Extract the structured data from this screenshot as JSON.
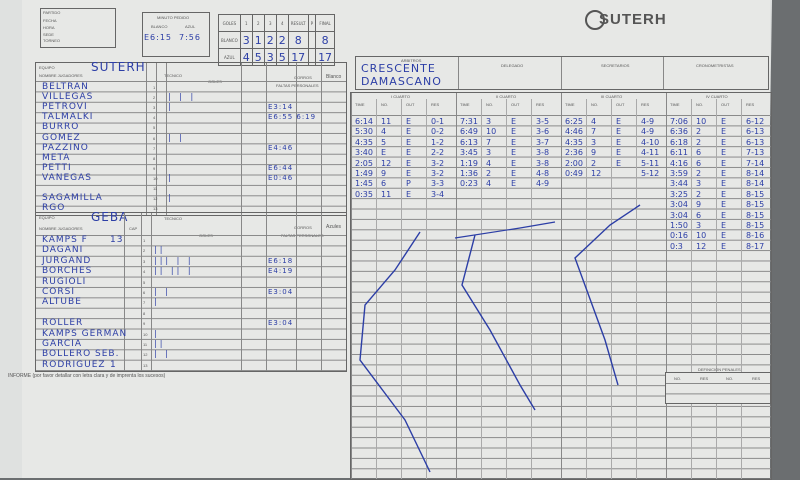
{
  "header": {
    "partido_label": "PARTIDO",
    "partido_fields": [
      "FECHA",
      "HORA",
      "SEDE",
      "TORNEO",
      "CATEGORIA"
    ],
    "minuto_pedido_label": "MINUTO PEDIDO",
    "minuto_pedido_cols": [
      "BLANCO",
      "AZUL"
    ],
    "minuto_pedido_values": [
      "E6:15",
      "7:56"
    ],
    "logo_text": "SUTERH"
  },
  "score": {
    "label": "GOLES",
    "cols": [
      "1",
      "2",
      "3",
      "4",
      "RESULT",
      "P",
      "FINAL"
    ],
    "rows": [
      {
        "team": "BLANCO",
        "q": [
          "3",
          "1",
          "2",
          "2"
        ],
        "result": "8",
        "final": "8"
      },
      {
        "team": "AZUL",
        "q": [
          "4",
          "5",
          "3",
          "5"
        ],
        "result": "17",
        "final": "17"
      }
    ]
  },
  "team_white": {
    "equipo_label": "EQUIPO",
    "name": "SUTERH",
    "tecnico_label": "TECNICO",
    "gorros_label": "GORROS",
    "gorros_color": "Blanco",
    "players_label": "NOMBRE JUGADORES",
    "cap_label": "CAP",
    "goles_label": "GOLES",
    "faltas_label": "FALTAS PERSONALES",
    "players": [
      {
        "n": "1",
        "name": "BELTRAN",
        "goals": "",
        "fouls": ""
      },
      {
        "n": "2",
        "name": "VILLEGAS",
        "goals": "| | |",
        "fouls": ""
      },
      {
        "n": "3",
        "name": "PETROVI",
        "goals": "|",
        "fouls": "E3:14"
      },
      {
        "n": "4",
        "name": "TALMALKI",
        "goals": "",
        "fouls": "E6:55  6:19"
      },
      {
        "n": "5",
        "name": "BURRO",
        "goals": "",
        "fouls": ""
      },
      {
        "n": "6",
        "name": "GOMEZ",
        "goals": "|   |",
        "fouls": ""
      },
      {
        "n": "7",
        "name": "PAZZINO",
        "goals": "",
        "fouls": "E4:46"
      },
      {
        "n": "8",
        "name": "META",
        "goals": "",
        "fouls": ""
      },
      {
        "n": "9",
        "name": "PETTI",
        "goals": "",
        "fouls": "E6:44"
      },
      {
        "n": "10",
        "name": "VANEGAS",
        "goals": "|",
        "fouls": "E0:46"
      },
      {
        "n": "11",
        "name": "",
        "goals": "",
        "fouls": ""
      },
      {
        "n": "12",
        "name": "SAGAMILLA",
        "goals": "|",
        "fouls": ""
      },
      {
        "n": "13",
        "name": "RGO",
        "goals": "",
        "fouls": ""
      }
    ]
  },
  "team_blue": {
    "equipo_label": "EQUIPO",
    "name": "GEBA",
    "tecnico_label": "TECNICO",
    "gorros_label": "GORROS",
    "gorros_color": "Azules",
    "players_label": "NOMBRE JUGADORES",
    "cap_label": "CAP",
    "goles_label": "GOLES",
    "faltas_label": "FALTAS PERSONALES",
    "players": [
      {
        "n": "1",
        "name": "KAMPS F",
        "cap": "13",
        "goals": "",
        "fouls": ""
      },
      {
        "n": "2",
        "name": "DAGANI",
        "goals": "||",
        "fouls": ""
      },
      {
        "n": "3",
        "name": "JURGAND",
        "goals": "||| |  |",
        "fouls": "E6:18"
      },
      {
        "n": "4",
        "name": "BORCHES",
        "goals": "|| ||  |",
        "fouls": "E4:19"
      },
      {
        "n": "5",
        "name": "RUGIOLI",
        "goals": "",
        "fouls": ""
      },
      {
        "n": "6",
        "name": "CORSI",
        "goals": "|    |",
        "fouls": "E3:04"
      },
      {
        "n": "7",
        "name": "ALTUBE",
        "goals": "|",
        "fouls": ""
      },
      {
        "n": "8",
        "name": "",
        "goals": "",
        "fouls": ""
      },
      {
        "n": "9",
        "name": "ROLLER",
        "goals": "",
        "fouls": "E3:04"
      },
      {
        "n": "10",
        "name": "KAMPS GERMAN",
        "goals": "|",
        "fouls": ""
      },
      {
        "n": "11",
        "name": "GARCIA",
        "goals": "||",
        "fouls": ""
      },
      {
        "n": "12",
        "name": "BOLLERO SEB.",
        "goals": "|  |",
        "fouls": ""
      },
      {
        "n": "13",
        "name": "RODRIGUEZ",
        "cap": "1",
        "goals": "",
        "fouls": ""
      }
    ]
  },
  "informe": "INFORME (por favor detallar con letra clara y de imprenta los sucesos)",
  "officials": {
    "arbitros_label": "ARBITROS",
    "arbitros": [
      "CRESCENTE",
      "DAMASCANO"
    ],
    "delegado_label": "DELEGADO",
    "secretarios_label": "SECRETARIOS",
    "cronometristas_label": "CRONOMETRISTAS"
  },
  "quarters": [
    {
      "label": "I CUARTO",
      "cols": [
        "TIME",
        "No.",
        "OUT",
        "RES"
      ],
      "rows": [
        [
          "6:14",
          "11",
          "E",
          "0-1"
        ],
        [
          "5:30",
          "4",
          "E",
          "0-2"
        ],
        [
          "4:35",
          "5",
          "E",
          "1-2"
        ],
        [
          "3:40",
          "E",
          "E",
          "2-2"
        ],
        [
          "2:05",
          "12",
          "E",
          "3-2"
        ],
        [
          "1:49",
          "9",
          "E",
          "3-2"
        ],
        [
          "1:45",
          "6",
          "P",
          "3-3"
        ],
        [
          "0:35",
          "11",
          "E",
          "3-4"
        ]
      ]
    },
    {
      "label": "II CUARTO",
      "cols": [
        "TIME",
        "No.",
        "OUT",
        "RES"
      ],
      "rows": [
        [
          "7:31",
          "3",
          "E",
          "3-5"
        ],
        [
          "6:49",
          "10",
          "E",
          "3-6"
        ],
        [
          "6:13",
          "7",
          "E",
          "3-7"
        ],
        [
          "3:45",
          "3",
          "E",
          "3-8"
        ],
        [
          "1:19",
          "4",
          "E",
          "3-8"
        ],
        [
          "1:36",
          "2",
          "E",
          "4-8"
        ],
        [
          "0:23",
          "4",
          "E",
          "4-9"
        ]
      ]
    },
    {
      "label": "III CUARTO",
      "cols": [
        "TIME",
        "No.",
        "OUT",
        "RES"
      ],
      "rows": [
        [
          "6:25",
          "4",
          "E",
          "4-9"
        ],
        [
          "4:46",
          "7",
          "E",
          "4-9"
        ],
        [
          "4:35",
          "3",
          "E",
          "4-10"
        ],
        [
          "2:36",
          "9",
          "E",
          "4-11"
        ],
        [
          "2:00",
          "2",
          "E",
          "5-11"
        ],
        [
          "0:49",
          "12",
          "",
          "5-12"
        ]
      ]
    },
    {
      "label": "IV CUARTO",
      "cols": [
        "TIME",
        "No.",
        "OUT",
        "RES"
      ],
      "rows": [
        [
          "7:06",
          "10",
          "E",
          "6-12"
        ],
        [
          "6:36",
          "2",
          "E",
          "6-13"
        ],
        [
          "6:18",
          "2",
          "E",
          "6-13"
        ],
        [
          "6:11",
          "6",
          "E",
          "7-13"
        ],
        [
          "4:16",
          "6",
          "E",
          "7-14"
        ],
        [
          "3:59",
          "2",
          "E",
          "8-14"
        ],
        [
          "3:44",
          "3",
          "E",
          "8-14"
        ],
        [
          "3:25",
          "2",
          "E",
          "8-15"
        ],
        [
          "3:04",
          "9",
          "E",
          "8-15"
        ],
        [
          "3:04",
          "6",
          "E",
          "8-15"
        ],
        [
          "1:50",
          "3",
          "E",
          "8-15"
        ],
        [
          "0:16",
          "10",
          "E",
          "8-16"
        ],
        [
          "0:3",
          "12",
          "E",
          "8-17"
        ]
      ]
    }
  ],
  "penales": {
    "label": "DEFINICION PENALES",
    "cols": [
      "No.",
      "RES",
      "No.",
      "RES"
    ]
  },
  "ink_color": "#2c3ea6"
}
